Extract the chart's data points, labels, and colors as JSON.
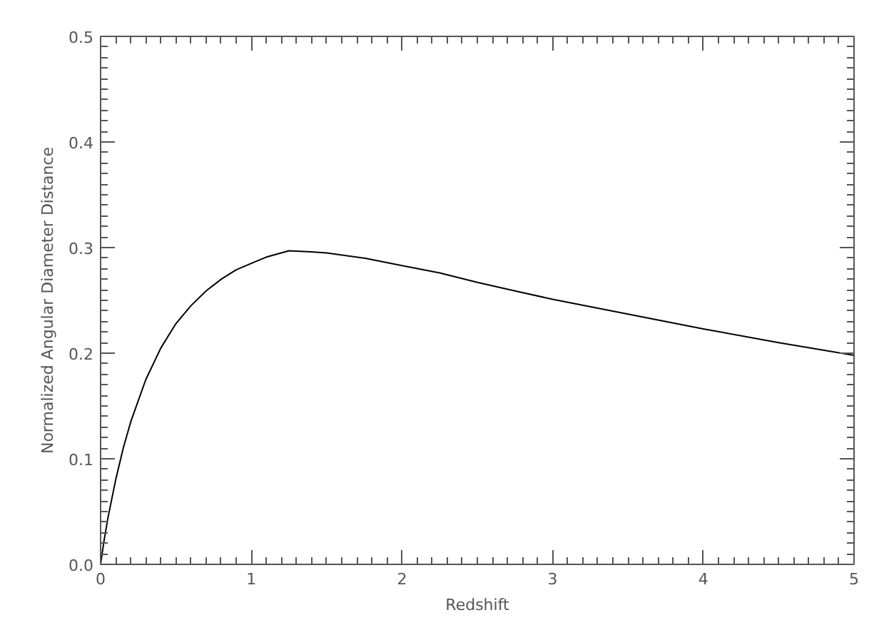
{
  "chart_data": {
    "type": "line",
    "xlabel": "Redshift",
    "ylabel": "Normalized Angular Diameter Distance",
    "x": [
      0,
      0.02,
      0.05,
      0.1,
      0.15,
      0.2,
      0.3,
      0.4,
      0.5,
      0.6,
      0.7,
      0.8,
      0.9,
      1.0,
      1.1,
      1.25,
      1.4,
      1.5,
      1.75,
      2.0,
      2.25,
      2.5,
      2.75,
      3.0,
      3.5,
      4.0,
      4.5,
      5.0
    ],
    "series": [
      {
        "color": "#000000",
        "values": [
          0,
          0.02,
          0.045,
          0.08,
          0.11,
          0.135,
          0.175,
          0.205,
          0.228,
          0.245,
          0.259,
          0.27,
          0.279,
          0.285,
          0.291,
          0.297,
          0.296,
          0.295,
          0.29,
          0.283,
          0.276,
          0.267,
          0.259,
          0.251,
          0.237,
          0.223,
          0.21,
          0.198
        ]
      }
    ],
    "xlim": [
      0,
      5
    ],
    "ylim": [
      0,
      0.5
    ],
    "xticks": [
      0,
      1,
      2,
      3,
      4,
      5
    ],
    "yticks": [
      {
        "value": 0,
        "label": "0.0"
      },
      0.1,
      0.2,
      0.3,
      0.4,
      0.5
    ],
    "grid": false,
    "marker": "none",
    "line_style": "solid"
  }
}
